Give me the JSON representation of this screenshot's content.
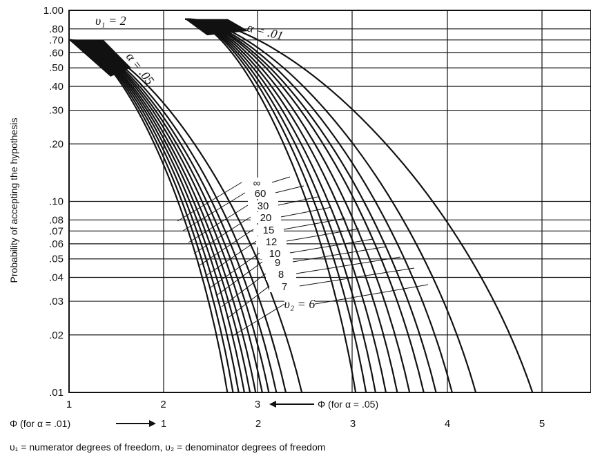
{
  "chart_data": {
    "type": "line",
    "title": "",
    "ylabel": "Probability of accepting the hypothesis",
    "y_scale": "log",
    "ylim": [
      0.01,
      1.0
    ],
    "y_ticks": [
      {
        "value": 1.0,
        "label": "1.00"
      },
      {
        "value": 0.8,
        "label": ".80"
      },
      {
        "value": 0.7,
        "label": ".70"
      },
      {
        "value": 0.6,
        "label": ".60"
      },
      {
        "value": 0.5,
        "label": ".50"
      },
      {
        "value": 0.4,
        "label": ".40"
      },
      {
        "value": 0.3,
        "label": ".30"
      },
      {
        "value": 0.2,
        "label": ".20"
      },
      {
        "value": 0.1,
        "label": ".10"
      },
      {
        "value": 0.08,
        "label": ".08"
      },
      {
        "value": 0.07,
        "label": ".07"
      },
      {
        "value": 0.06,
        "label": ".06"
      },
      {
        "value": 0.05,
        "label": ".05"
      },
      {
        "value": 0.04,
        "label": ".04"
      },
      {
        "value": 0.03,
        "label": ".03"
      },
      {
        "value": 0.02,
        "label": ".02"
      },
      {
        "value": 0.01,
        "label": ".01"
      }
    ],
    "x_axis_alpha05": {
      "ticks": [
        {
          "value": 1,
          "label": "1"
        },
        {
          "value": 2,
          "label": "2"
        },
        {
          "value": 3,
          "label": "3"
        }
      ],
      "label": "Φ (for α = .05)"
    },
    "x_axis_alpha01": {
      "label": "Φ (for α = .01)",
      "ticks": [
        {
          "value": 1,
          "label": "1"
        },
        {
          "value": 2,
          "label": "2"
        },
        {
          "value": 3,
          "label": "3"
        },
        {
          "value": 4,
          "label": "4"
        },
        {
          "value": 5,
          "label": "5"
        }
      ]
    },
    "nu1_label": "υ₁ = 2",
    "alpha05_label": "α = .05",
    "alpha01_label": "α = .01",
    "df_labels": [
      "∞",
      "60",
      "30",
      "20",
      "15",
      "12",
      "10",
      "9",
      "8",
      "7",
      "υ₂ = 6"
    ],
    "series": [
      {
        "alpha": 0.05,
        "nu2": "∞",
        "phi_at_p01": 2.68,
        "phi_at_top": 1.0,
        "p_top": 0.7
      },
      {
        "alpha": 0.05,
        "nu2": "60",
        "phi_at_p01": 2.74,
        "phi_at_top": 1.0,
        "p_top": 0.7
      },
      {
        "alpha": 0.05,
        "nu2": "30",
        "phi_at_p01": 2.8,
        "phi_at_top": 1.0,
        "p_top": 0.7
      },
      {
        "alpha": 0.05,
        "nu2": "20",
        "phi_at_p01": 2.86,
        "phi_at_top": 1.0,
        "p_top": 0.7
      },
      {
        "alpha": 0.05,
        "nu2": "15",
        "phi_at_p01": 2.92,
        "phi_at_top": 1.0,
        "p_top": 0.7
      },
      {
        "alpha": 0.05,
        "nu2": "12",
        "phi_at_p01": 2.98,
        "phi_at_top": 1.0,
        "p_top": 0.7
      },
      {
        "alpha": 0.05,
        "nu2": "10",
        "phi_at_p01": 3.05,
        "phi_at_top": 1.0,
        "p_top": 0.7
      },
      {
        "alpha": 0.05,
        "nu2": "9",
        "phi_at_p01": 3.12,
        "phi_at_top": 1.0,
        "p_top": 0.7
      },
      {
        "alpha": 0.05,
        "nu2": "8",
        "phi_at_p01": 3.2,
        "phi_at_top": 1.0,
        "p_top": 0.7
      },
      {
        "alpha": 0.05,
        "nu2": "7",
        "phi_at_p01": 3.3,
        "phi_at_top": 1.0,
        "p_top": 0.7
      },
      {
        "alpha": 0.05,
        "nu2": "6",
        "phi_at_p01": 3.47,
        "phi_at_top": 1.0,
        "p_top": 0.7
      },
      {
        "alpha": 0.01,
        "nu2": "∞",
        "phi_at_p01": 3.03,
        "phi_at_top": 1.0,
        "p_top": 0.9
      },
      {
        "alpha": 0.01,
        "nu2": "60",
        "phi_at_p01": 3.14,
        "phi_at_top": 1.0,
        "p_top": 0.9
      },
      {
        "alpha": 0.01,
        "nu2": "30",
        "phi_at_p01": 3.24,
        "phi_at_top": 1.0,
        "p_top": 0.9
      },
      {
        "alpha": 0.01,
        "nu2": "20",
        "phi_at_p01": 3.35,
        "phi_at_top": 1.0,
        "p_top": 0.9
      },
      {
        "alpha": 0.01,
        "nu2": "15",
        "phi_at_p01": 3.47,
        "phi_at_top": 1.0,
        "p_top": 0.9
      },
      {
        "alpha": 0.01,
        "nu2": "12",
        "phi_at_p01": 3.6,
        "phi_at_top": 1.0,
        "p_top": 0.9
      },
      {
        "alpha": 0.01,
        "nu2": "10",
        "phi_at_p01": 3.75,
        "phi_at_top": 1.0,
        "p_top": 0.9
      },
      {
        "alpha": 0.01,
        "nu2": "9",
        "phi_at_p01": 3.88,
        "phi_at_top": 1.0,
        "p_top": 0.9
      },
      {
        "alpha": 0.01,
        "nu2": "8",
        "phi_at_p01": 4.05,
        "phi_at_top": 1.0,
        "p_top": 0.9
      },
      {
        "alpha": 0.01,
        "nu2": "7",
        "phi_at_p01": 4.3,
        "phi_at_top": 1.0,
        "p_top": 0.9
      },
      {
        "alpha": 0.01,
        "nu2": "6",
        "phi_at_p01": 4.9,
        "phi_at_top": 1.0,
        "p_top": 0.9
      }
    ],
    "grid": true,
    "footnote": "υ₁ = numerator degrees of freedom,  υ₂ = denominator degrees of freedom"
  }
}
